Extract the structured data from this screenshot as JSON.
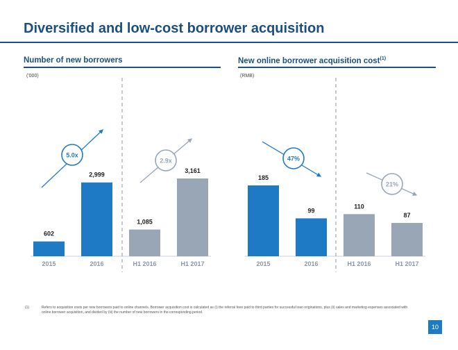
{
  "title": "Diversified and low-cost borrower acquisition",
  "page_number": "10",
  "colors": {
    "blue": "#1f7ac6",
    "gray": "#98a6b5",
    "navy": "#1c4f80",
    "gray_text": "#8a97a6"
  },
  "footnote": {
    "marker": "(1)",
    "text": "Refers to acquisition costs per new borrowers paid to online channels. Borrower acquisition cost is calculated as (i) the referral fees paid to third parties for successful loan originations, plus (ii) sales and marketing expenses associated with online borrower acquisition, and divided by (iii) the number of new borrowers in the corresponding period."
  },
  "chart_data": [
    {
      "type": "bar",
      "title": "Number of new borrowers",
      "unit": "('000)",
      "categories": [
        "2015",
        "2016",
        "H1 2016",
        "H1 2017"
      ],
      "values": [
        602,
        2999,
        1085,
        3161
      ],
      "labels": [
        "602",
        "2,999",
        "1,085",
        "3,161"
      ],
      "bar_colors": [
        "blue",
        "blue",
        "gray",
        "gray"
      ],
      "ylim": [
        0,
        3161
      ],
      "annotations": [
        {
          "text": "5.0x",
          "direction": "up",
          "color": "blue"
        },
        {
          "text": "2.9x",
          "direction": "up",
          "color": "gray"
        }
      ]
    },
    {
      "type": "bar",
      "title": "New online borrower acquisition cost",
      "title_superscript": "(1)",
      "unit": "(RMB)",
      "categories": [
        "2015",
        "2016",
        "H1 2016",
        "H1 2017"
      ],
      "values": [
        185,
        99,
        110,
        87
      ],
      "labels": [
        "185",
        "99",
        "110",
        "87"
      ],
      "bar_colors": [
        "blue",
        "blue",
        "gray",
        "gray"
      ],
      "ylim": [
        0,
        185
      ],
      "annotations": [
        {
          "text": "47%",
          "direction": "down",
          "color": "blue"
        },
        {
          "text": "21%",
          "direction": "down",
          "color": "gray"
        }
      ]
    }
  ]
}
